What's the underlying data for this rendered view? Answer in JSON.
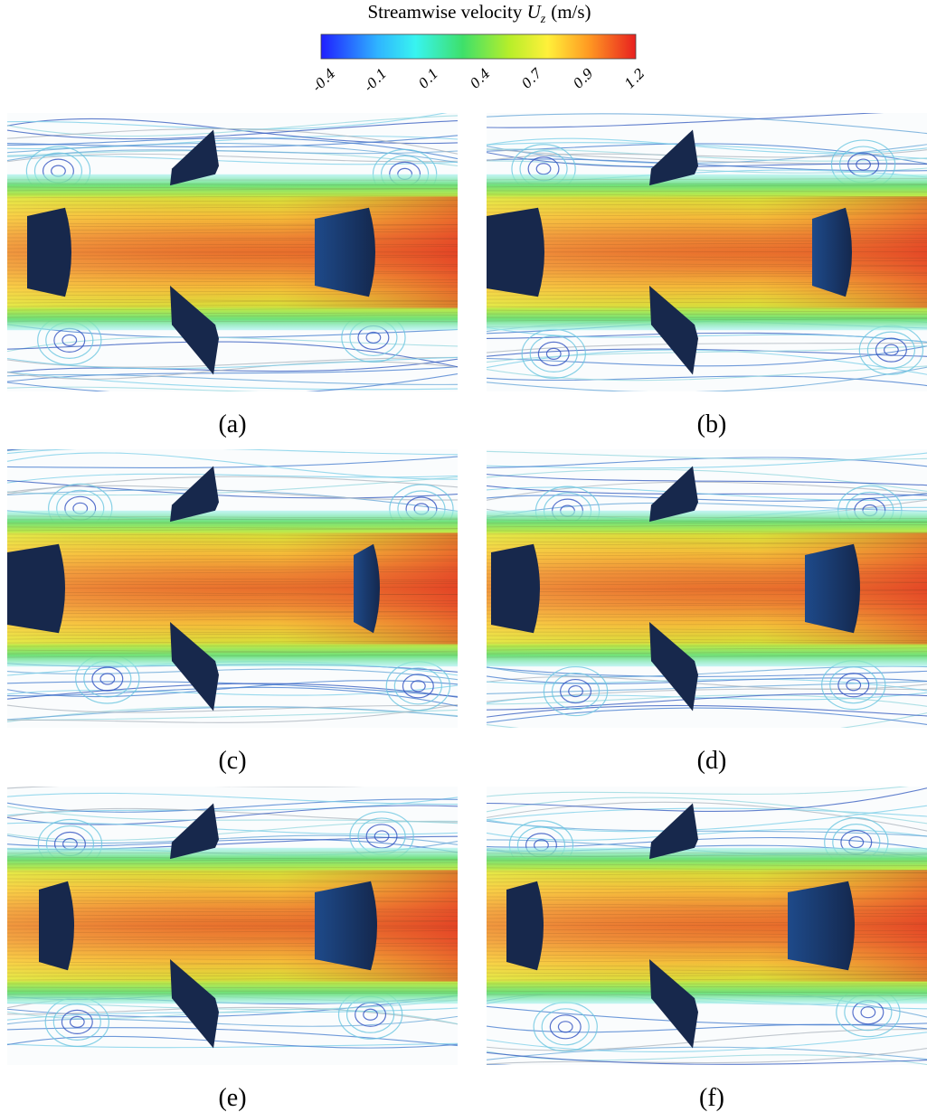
{
  "colorbar": {
    "title": "Streamwise velocity",
    "symbol": "U",
    "subscript": "z",
    "unit": "(m/s)",
    "ticks": [
      "-0.4",
      "-0.1",
      "0.1",
      "0.4",
      "0.7",
      "0.9",
      "1.2"
    ]
  },
  "panels": [
    {
      "label": "(a)"
    },
    {
      "label": "(b)"
    },
    {
      "label": "(c)"
    },
    {
      "label": "(d)"
    },
    {
      "label": "(e)"
    },
    {
      "label": "(f)"
    }
  ]
}
